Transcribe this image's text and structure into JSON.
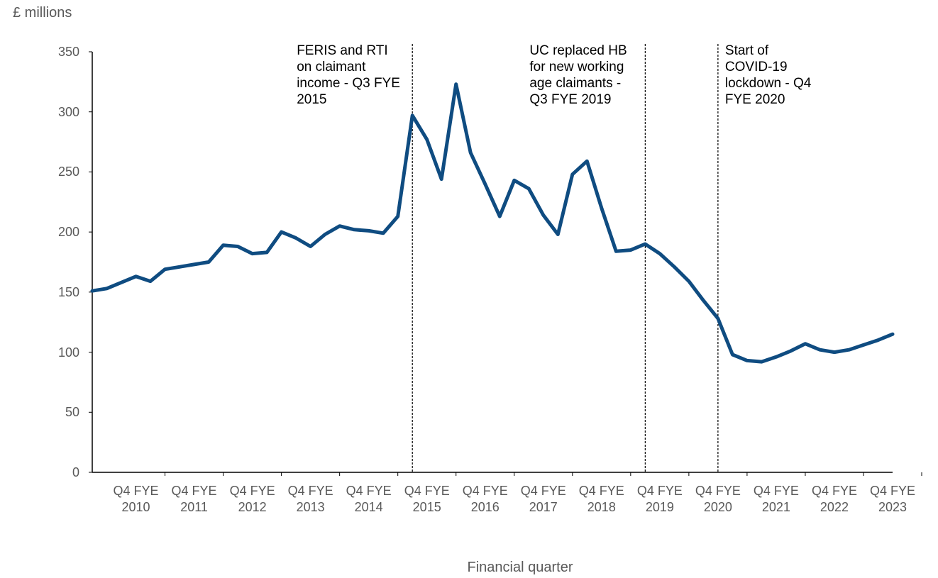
{
  "chart_data": {
    "type": "line",
    "title": "£ millions",
    "x_label": "Financial quarter",
    "categories": [
      null,
      null,
      null,
      "Q4 FYE 2010",
      null,
      null,
      null,
      "Q4 FYE 2011",
      null,
      null,
      null,
      "Q4 FYE 2012",
      null,
      null,
      null,
      "Q4 FYE 2013",
      null,
      null,
      null,
      "Q4 FYE 2014",
      null,
      null,
      null,
      "Q4 FYE 2015",
      null,
      null,
      null,
      "Q4 FYE 2016",
      null,
      null,
      null,
      "Q4 FYE 2017",
      null,
      null,
      null,
      "Q4 FYE 2018",
      null,
      null,
      null,
      "Q4 FYE 2019",
      null,
      null,
      null,
      "Q4 FYE 2020",
      null,
      null,
      null,
      "Q4 FYE 2021",
      null,
      null,
      null,
      "Q4 FYE 2022",
      null,
      null,
      null,
      "Q4 FYE 2023"
    ],
    "series": [
      {
        "name": null,
        "color": "#0f4c81",
        "values": [
          151,
          153,
          158,
          163,
          159,
          169,
          171,
          173,
          175,
          189,
          188,
          182,
          183,
          200,
          195,
          188,
          198,
          205,
          202,
          201,
          199,
          213,
          297,
          277,
          244,
          323,
          266,
          240,
          213,
          243,
          236,
          214,
          198,
          248,
          259,
          220,
          184,
          185,
          190,
          182,
          171,
          159,
          143,
          128,
          98,
          93,
          92,
          96,
          101,
          107,
          102,
          100,
          102,
          106,
          110,
          115
        ]
      }
    ],
    "ylim": [
      0,
      350
    ],
    "yticks": [
      0,
      50,
      100,
      150,
      200,
      250,
      300,
      350
    ],
    "annotations": [
      {
        "text": "FERIS and RTI on claimant income - Q3 FYE 2015",
        "at": 22
      },
      {
        "text": "UC replaced HB for new working age claimants - Q3 FYE 2019",
        "at": 38
      },
      {
        "text": "Start of COVID-19 lockdown - Q4 FYE 2020",
        "at": 43
      }
    ]
  }
}
